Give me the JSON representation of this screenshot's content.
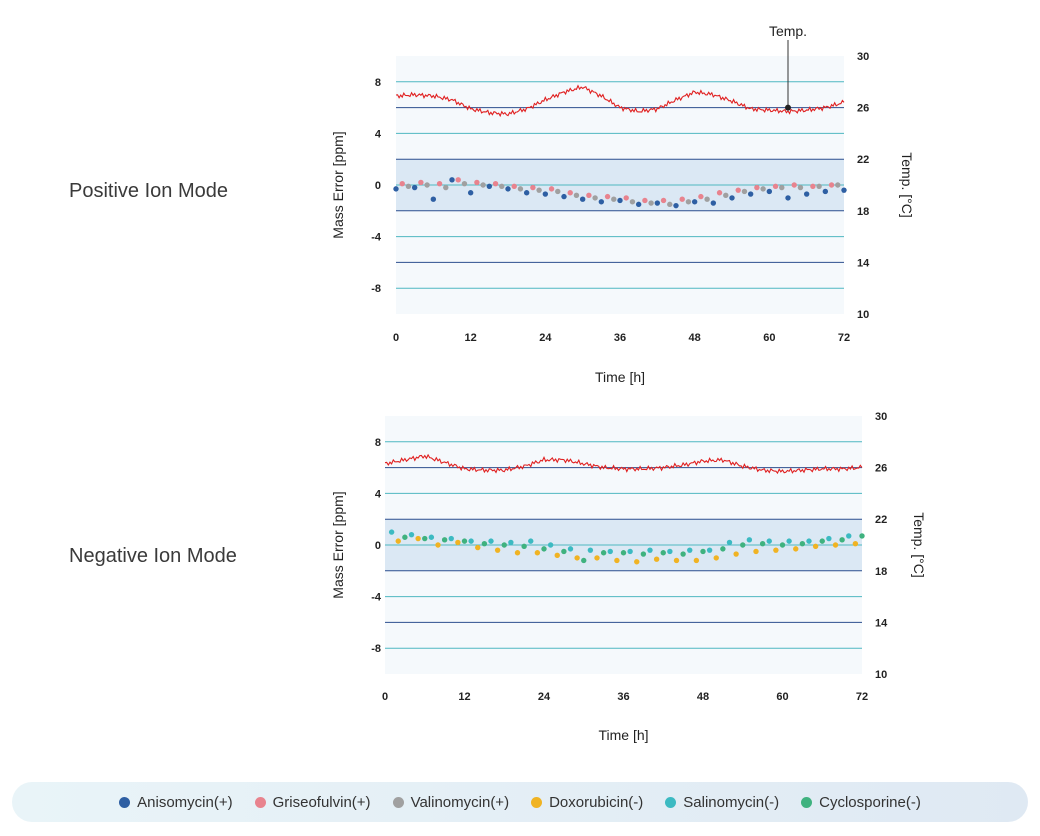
{
  "modes": {
    "positive_label": "Positive Ion Mode",
    "negative_label": "Negative Ion Mode"
  },
  "colors": {
    "temperature": "#e02020",
    "Anisomycin(+)": "#2e5fa3",
    "Griseofulvin(+)": "#e8838e",
    "Valinomycin(+)": "#a0a0a0",
    "Doxorubicin(-)": "#f0b323",
    "Salinomycin(-)": "#3cbac2",
    "Cyclosporine(-)": "#3fb27f"
  },
  "legend": [
    {
      "label": "Anisomycin(+)",
      "color": "#2e5fa3"
    },
    {
      "label": "Griseofulvin(+)",
      "color": "#e8838e"
    },
    {
      "label": "Valinomycin(+)",
      "color": "#a0a0a0"
    },
    {
      "label": "Doxorubicin(-)",
      "color": "#f0b323"
    },
    {
      "label": "Salinomycin(-)",
      "color": "#3cbac2"
    },
    {
      "label": "Cyclosporine(-)",
      "color": "#3fb27f"
    }
  ],
  "chart_data": [
    {
      "type": "scatter",
      "title": "",
      "xlabel": "Time [h]",
      "ylabel": "Mass Error [ppm]",
      "y2label": "Temp. [°C]",
      "xlim": [
        0,
        72
      ],
      "ylim": [
        -10,
        10
      ],
      "y2lim": [
        10,
        30
      ],
      "xticks": [
        0,
        12,
        24,
        36,
        48,
        60,
        72
      ],
      "yticks": [
        8,
        4,
        0,
        -4,
        -8
      ],
      "y2ticks": [
        30,
        26,
        22,
        18,
        14,
        10
      ],
      "annotation": {
        "text": "Temp.",
        "x": 63,
        "y2": 26
      },
      "temperature": {
        "x": [
          0,
          3,
          6,
          9,
          12,
          15,
          18,
          21,
          24,
          27,
          30,
          33,
          36,
          39,
          42,
          45,
          48,
          51,
          54,
          57,
          60,
          63,
          66,
          69,
          72
        ],
        "y": [
          26.9,
          27.0,
          26.9,
          26.6,
          25.9,
          25.6,
          25.5,
          25.9,
          26.6,
          27.2,
          27.6,
          26.9,
          26.0,
          25.7,
          25.9,
          26.6,
          27.2,
          27.0,
          26.5,
          25.9,
          25.8,
          25.7,
          25.8,
          26.0,
          26.4
        ]
      },
      "series": [
        {
          "name": "Anisomycin(+)",
          "x": [
            0,
            3,
            6,
            9,
            12,
            15,
            18,
            21,
            24,
            27,
            30,
            33,
            36,
            39,
            42,
            45,
            48,
            51,
            54,
            57,
            60,
            63,
            66,
            69,
            72
          ],
          "y": [
            -0.3,
            -0.2,
            -1.1,
            0.4,
            -0.6,
            -0.1,
            -0.3,
            -0.6,
            -0.7,
            -0.9,
            -1.1,
            -1.3,
            -1.2,
            -1.5,
            -1.4,
            -1.6,
            -1.3,
            -1.4,
            -1.0,
            -0.7,
            -0.5,
            -1.0,
            -0.7,
            -0.5,
            -0.4
          ]
        },
        {
          "name": "Griseofulvin(+)",
          "x": [
            1,
            4,
            7,
            10,
            13,
            16,
            19,
            22,
            25,
            28,
            31,
            34,
            37,
            40,
            43,
            46,
            49,
            52,
            55,
            58,
            61,
            64,
            67,
            70
          ],
          "y": [
            0.1,
            0.2,
            0.1,
            0.4,
            0.2,
            0.1,
            -0.1,
            -0.2,
            -0.3,
            -0.6,
            -0.8,
            -0.9,
            -1.0,
            -1.2,
            -1.2,
            -1.1,
            -0.9,
            -0.6,
            -0.4,
            -0.2,
            -0.1,
            0.0,
            -0.1,
            0.0
          ]
        },
        {
          "name": "Valinomycin(+)",
          "x": [
            2,
            5,
            8,
            11,
            14,
            17,
            20,
            23,
            26,
            29,
            32,
            35,
            38,
            41,
            44,
            47,
            50,
            53,
            56,
            59,
            62,
            65,
            68,
            71
          ],
          "y": [
            -0.1,
            0.0,
            -0.2,
            0.1,
            0.0,
            -0.1,
            -0.3,
            -0.4,
            -0.5,
            -0.8,
            -1.0,
            -1.1,
            -1.3,
            -1.4,
            -1.5,
            -1.3,
            -1.1,
            -0.8,
            -0.5,
            -0.3,
            -0.2,
            -0.2,
            -0.1,
            0.0
          ]
        }
      ]
    },
    {
      "type": "scatter",
      "title": "",
      "xlabel": "Time [h]",
      "ylabel": "Mass Error [ppm]",
      "y2label": "Temp. [°C]",
      "xlim": [
        0,
        72
      ],
      "ylim": [
        -10,
        10
      ],
      "y2lim": [
        10,
        30
      ],
      "xticks": [
        0,
        12,
        24,
        36,
        48,
        60,
        72
      ],
      "yticks": [
        8,
        4,
        0,
        -4,
        -8
      ],
      "y2ticks": [
        30,
        26,
        22,
        18,
        14,
        10
      ],
      "temperature": {
        "x": [
          0,
          3,
          6,
          9,
          12,
          15,
          18,
          21,
          24,
          27,
          30,
          33,
          36,
          39,
          42,
          45,
          48,
          51,
          54,
          57,
          60,
          63,
          66,
          69,
          72
        ],
        "y": [
          26.3,
          26.6,
          26.9,
          26.4,
          25.9,
          25.8,
          25.8,
          26.1,
          26.6,
          26.6,
          26.3,
          26.0,
          25.9,
          25.9,
          26.0,
          26.2,
          26.5,
          26.6,
          26.1,
          25.8,
          25.7,
          25.8,
          25.9,
          25.9,
          26.0
        ]
      },
      "series": [
        {
          "name": "Doxorubicin(-)",
          "x": [
            2,
            5,
            8,
            11,
            14,
            17,
            20,
            23,
            26,
            29,
            32,
            35,
            38,
            41,
            44,
            47,
            50,
            53,
            56,
            59,
            62,
            65,
            68,
            71
          ],
          "y": [
            0.3,
            0.5,
            0.0,
            0.2,
            -0.2,
            -0.4,
            -0.6,
            -0.6,
            -0.8,
            -1.0,
            -1.0,
            -1.2,
            -1.3,
            -1.1,
            -1.2,
            -1.2,
            -1.0,
            -0.7,
            -0.5,
            -0.4,
            -0.3,
            -0.1,
            0.0,
            0.1
          ]
        },
        {
          "name": "Salinomycin(-)",
          "x": [
            1,
            4,
            7,
            10,
            13,
            16,
            19,
            22,
            25,
            28,
            31,
            34,
            37,
            40,
            43,
            46,
            49,
            52,
            55,
            58,
            61,
            64,
            67,
            70
          ],
          "y": [
            1.0,
            0.8,
            0.6,
            0.5,
            0.3,
            0.3,
            0.2,
            0.3,
            0.0,
            -0.3,
            -0.4,
            -0.5,
            -0.5,
            -0.4,
            -0.5,
            -0.4,
            -0.4,
            0.2,
            0.4,
            0.3,
            0.3,
            0.3,
            0.5,
            0.7
          ]
        },
        {
          "name": "Cyclosporine(-)",
          "x": [
            3,
            6,
            9,
            12,
            15,
            18,
            21,
            24,
            27,
            30,
            33,
            36,
            39,
            42,
            45,
            48,
            51,
            54,
            57,
            60,
            63,
            66,
            69,
            72
          ],
          "y": [
            0.6,
            0.5,
            0.4,
            0.3,
            0.1,
            0.0,
            -0.1,
            -0.3,
            -0.5,
            -1.2,
            -0.6,
            -0.6,
            -0.7,
            -0.6,
            -0.7,
            -0.5,
            -0.3,
            0.0,
            0.1,
            0.0,
            0.1,
            0.3,
            0.4,
            0.7
          ]
        }
      ]
    }
  ]
}
